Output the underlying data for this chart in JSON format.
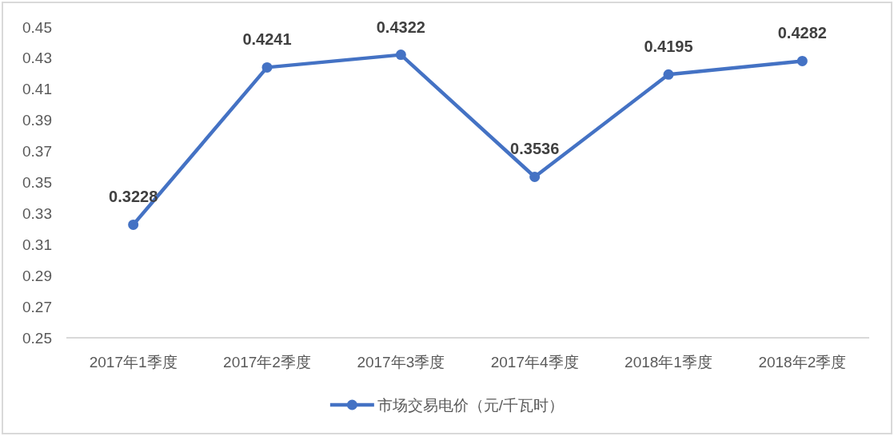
{
  "chart_data": {
    "type": "line",
    "categories": [
      "2017年1季度",
      "2017年2季度",
      "2017年3季度",
      "2017年4季度",
      "2018年1季度",
      "2018年2季度"
    ],
    "series": [
      {
        "name": "市场交易电价（元/千瓦时）",
        "color": "#4472c4",
        "values": [
          0.3228,
          0.4241,
          0.4322,
          0.3536,
          0.4195,
          0.4282
        ]
      }
    ],
    "ylim": [
      0.25,
      0.45
    ],
    "yticks": [
      0.25,
      0.27,
      0.29,
      0.31,
      0.33,
      0.35,
      0.37,
      0.39,
      0.41,
      0.43,
      0.45
    ],
    "data_labels": true,
    "legend": "bottom",
    "marker": "circle",
    "line_style": "solid"
  }
}
